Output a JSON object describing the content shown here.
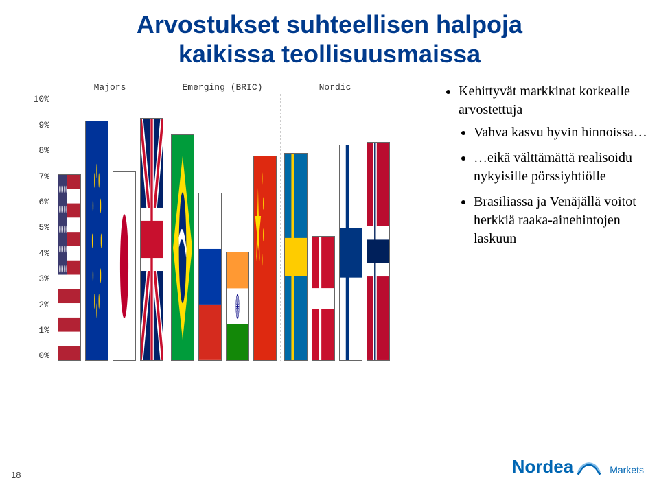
{
  "title_line1": "Arvostukset suhteellisen halpoja",
  "title_line2": "kaikissa teollisuusmaissa",
  "title_color": "#003a8c",
  "title_fontsize": 36,
  "chart": {
    "type": "bar",
    "ylim": [
      0,
      10
    ],
    "ytick_step": 1,
    "ytick_suffix": "%",
    "yticks": [
      "0%",
      "1%",
      "2%",
      "3%",
      "4%",
      "5%",
      "6%",
      "7%",
      "8%",
      "9%",
      "10%"
    ],
    "background_color": "#ffffff",
    "grid_color": "#cccccc",
    "bar_border": "#666666",
    "group_labels": [
      "Majors",
      "Emerging (BRIC)",
      "Nordic"
    ],
    "label_font": "Courier New",
    "label_fontsize": 13,
    "groups": [
      {
        "name": "Majors",
        "bars": [
          {
            "country": "USA",
            "value": 7.0,
            "flag": "us"
          },
          {
            "country": "Europe",
            "value": 9.0,
            "flag": "eu"
          },
          {
            "country": "Japan",
            "value": 7.1,
            "flag": "jp"
          },
          {
            "country": "UK",
            "value": 9.1,
            "flag": "uk"
          }
        ]
      },
      {
        "name": "Emerging (BRIC)",
        "bars": [
          {
            "country": "Brazil",
            "value": 8.5,
            "flag": "br"
          },
          {
            "country": "Russia",
            "value": 6.3,
            "flag": "ru"
          },
          {
            "country": "India",
            "value": 4.1,
            "flag": "in"
          },
          {
            "country": "China",
            "value": 7.7,
            "flag": "cn"
          }
        ]
      },
      {
        "name": "Nordic",
        "bars": [
          {
            "country": "Sweden",
            "value": 7.8,
            "flag": "se"
          },
          {
            "country": "Denmark",
            "value": 4.7,
            "flag": "dk"
          },
          {
            "country": "Finland",
            "value": 8.1,
            "flag": "fi"
          },
          {
            "country": "Norway",
            "value": 8.2,
            "flag": "no"
          }
        ]
      }
    ],
    "flag_colors": {
      "us": {
        "red": "#b22234",
        "white": "#ffffff",
        "blue": "#3c3b6e"
      },
      "eu": {
        "blue": "#003399",
        "gold": "#ffcc00"
      },
      "jp": {
        "white": "#ffffff",
        "red": "#bc002d"
      },
      "uk": {
        "blue": "#012169",
        "white": "#ffffff",
        "red": "#c8102e"
      },
      "br": {
        "green": "#009c3b",
        "yellow": "#ffdf00",
        "blue": "#002776",
        "white": "#ffffff"
      },
      "ru": {
        "white": "#ffffff",
        "blue": "#0039a6",
        "red": "#d52b1e"
      },
      "in": {
        "saffron": "#ff9933",
        "white": "#ffffff",
        "green": "#138808",
        "navy": "#000080"
      },
      "cn": {
        "red": "#de2910",
        "gold": "#ffde00"
      },
      "se": {
        "blue": "#006aa7",
        "yellow": "#fecc00"
      },
      "dk": {
        "red": "#c8102e",
        "white": "#ffffff"
      },
      "fi": {
        "white": "#ffffff",
        "blue": "#003580"
      },
      "no": {
        "red": "#ba0c2f",
        "white": "#ffffff",
        "blue": "#00205b"
      }
    }
  },
  "bullets": {
    "items": [
      {
        "text": "Kehittyvät markkinat korkealle arvostettuja",
        "children": [
          {
            "text": "Vahva kasvu hyvin hinnoissa…"
          },
          {
            "text": "…eikä välttämättä realisoidu nykyisille pörssiyhtiölle"
          },
          {
            "text": "Brasiliassa ja Venäjällä voitot herkkiä raaka-ainehintojen laskuun"
          }
        ]
      }
    ],
    "fontsize": 20,
    "font_family": "Times New Roman",
    "text_color": "#000000"
  },
  "page_number": "18",
  "logo": {
    "brand": "Nordea",
    "sub": "Markets",
    "color": "#0066b3"
  }
}
